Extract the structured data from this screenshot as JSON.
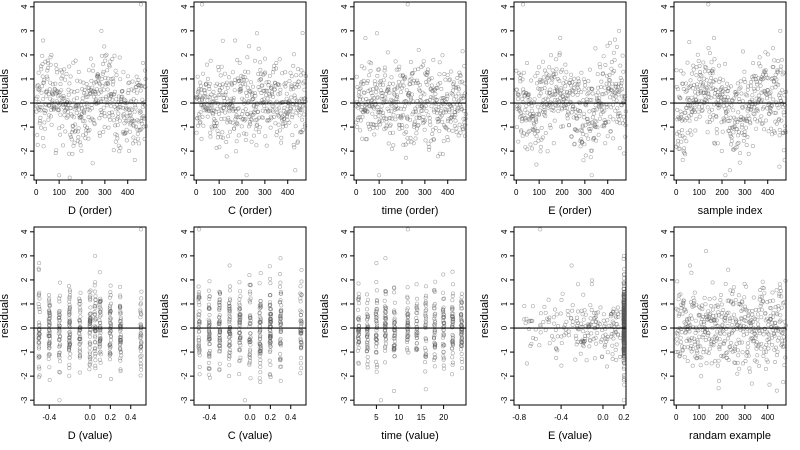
{
  "figure": {
    "layout": {
      "rows": 2,
      "cols": 5
    },
    "colors": {
      "points": "#555555",
      "zero_line": "#000000",
      "frame": "#000000"
    }
  },
  "chart_data": [
    {
      "id": "d-order",
      "type": "scatter",
      "xlabel": "D (order)",
      "ylabel": "residuals",
      "xlim": [
        -10,
        480
      ],
      "ylim": [
        -3.2,
        4.2
      ],
      "xticks": [
        0,
        100,
        200,
        300,
        400
      ],
      "yticks": [
        -3,
        -2,
        -1,
        0,
        1,
        2,
        3,
        4
      ],
      "grid": false,
      "n_points": 480,
      "x_pattern": "index",
      "y_pattern": "wave",
      "reference_line_y": 0,
      "extremes": [
        [
          458,
          4.1
        ],
        [
          100,
          -3.0
        ],
        [
          285,
          3.0
        ],
        [
          30,
          2.6
        ]
      ]
    },
    {
      "id": "c-order",
      "type": "scatter",
      "xlabel": "C (order)",
      "ylabel": "residuals",
      "xlim": [
        -10,
        480
      ],
      "ylim": [
        -3.2,
        4.2
      ],
      "xticks": [
        0,
        100,
        200,
        300,
        400
      ],
      "yticks": [
        -3,
        -2,
        -1,
        0,
        1,
        2,
        3,
        4
      ],
      "grid": false,
      "n_points": 480,
      "x_pattern": "index",
      "y_pattern": "noise",
      "reference_line_y": 0,
      "extremes": [
        [
          25,
          4.1
        ],
        [
          220,
          -3.0
        ],
        [
          265,
          2.9
        ],
        [
          170,
          2.6
        ]
      ]
    },
    {
      "id": "time-order",
      "type": "scatter",
      "xlabel": "time (order)",
      "ylabel": "residuals",
      "xlim": [
        -10,
        480
      ],
      "ylim": [
        -3.2,
        4.2
      ],
      "xticks": [
        0,
        100,
        200,
        300,
        400
      ],
      "yticks": [
        -3,
        -2,
        -1,
        0,
        1,
        2,
        3,
        4
      ],
      "grid": false,
      "n_points": 480,
      "x_pattern": "index",
      "y_pattern": "noise",
      "reference_line_y": 0,
      "extremes": [
        [
          225,
          4.1
        ],
        [
          100,
          -3.0
        ],
        [
          90,
          2.9
        ],
        [
          40,
          2.7
        ]
      ]
    },
    {
      "id": "e-order",
      "type": "scatter",
      "xlabel": "E (order)",
      "ylabel": "residuals",
      "xlim": [
        -10,
        480
      ],
      "ylim": [
        -3.2,
        4.2
      ],
      "xticks": [
        0,
        100,
        200,
        300,
        400
      ],
      "yticks": [
        -3,
        -2,
        -1,
        0,
        1,
        2,
        3,
        4
      ],
      "grid": false,
      "n_points": 480,
      "x_pattern": "index",
      "y_pattern": "wave",
      "reference_line_y": 0,
      "extremes": [
        [
          30,
          4.1
        ],
        [
          330,
          -3.0
        ],
        [
          450,
          3.0
        ],
        [
          410,
          2.5
        ]
      ]
    },
    {
      "id": "sample-index",
      "type": "scatter",
      "xlabel": "sample index",
      "ylabel": "residuals",
      "xlim": [
        -10,
        480
      ],
      "ylim": [
        -3.2,
        4.2
      ],
      "xticks": [
        0,
        100,
        200,
        300,
        400
      ],
      "yticks": [
        -3,
        -2,
        -1,
        0,
        1,
        2,
        3,
        4
      ],
      "grid": false,
      "n_points": 480,
      "x_pattern": "index",
      "y_pattern": "wave",
      "reference_line_y": 0,
      "extremes": [
        [
          140,
          4.1
        ],
        [
          215,
          -3.0
        ],
        [
          455,
          3.0
        ],
        [
          165,
          2.7
        ]
      ]
    },
    {
      "id": "d-value",
      "type": "scatter",
      "xlabel": "D (value)",
      "ylabel": "residuals",
      "xlim": [
        -0.55,
        0.55
      ],
      "ylim": [
        -3.2,
        4.2
      ],
      "xticks": [
        -0.4,
        0,
        0.2,
        0.4
      ],
      "yticks": [
        -3,
        -2,
        -1,
        0,
        1,
        2,
        3,
        4
      ],
      "grid": false,
      "n_points": 480,
      "x_pattern": "clusters",
      "x_levels": [
        -0.5,
        -0.4,
        -0.3,
        -0.2,
        -0.1,
        0,
        0.05,
        0.1,
        0.2,
        0.3,
        0.5
      ],
      "reference_line_y": 0,
      "extremes": [
        [
          0.5,
          4.1
        ],
        [
          -0.3,
          -3.0
        ],
        [
          0.05,
          3.0
        ],
        [
          -0.5,
          2.7
        ]
      ]
    },
    {
      "id": "c-value",
      "type": "scatter",
      "xlabel": "C (value)",
      "ylabel": "residuals",
      "xlim": [
        -0.55,
        0.55
      ],
      "ylim": [
        -3.2,
        4.2
      ],
      "xticks": [
        -0.4,
        0,
        0.2,
        0.4
      ],
      "yticks": [
        -3,
        -2,
        -1,
        0,
        1,
        2,
        3,
        4
      ],
      "grid": false,
      "n_points": 480,
      "x_pattern": "clusters",
      "x_levels": [
        -0.5,
        -0.4,
        -0.3,
        -0.2,
        -0.1,
        0,
        0.1,
        0.2,
        0.3,
        0.5
      ],
      "reference_line_y": 0,
      "extremes": [
        [
          -0.5,
          4.1
        ],
        [
          -0.05,
          -3.0
        ],
        [
          0.3,
          2.9
        ],
        [
          -0.2,
          2.6
        ]
      ]
    },
    {
      "id": "time-value",
      "type": "scatter",
      "xlabel": "time (value)",
      "ylabel": "residuals",
      "xlim": [
        0,
        25
      ],
      "ylim": [
        -3.2,
        4.2
      ],
      "xticks": [
        5,
        10,
        15,
        20
      ],
      "yticks": [
        -3,
        -2,
        -1,
        0,
        1,
        2,
        3,
        4
      ],
      "grid": false,
      "n_points": 480,
      "x_pattern": "clusters",
      "x_levels": [
        1,
        3,
        5,
        7,
        9,
        12,
        14,
        16,
        18,
        20,
        22,
        24
      ],
      "reference_line_y": 0,
      "extremes": [
        [
          12,
          4.1
        ],
        [
          6,
          -3.0
        ],
        [
          7,
          2.9
        ],
        [
          5,
          2.7
        ]
      ]
    },
    {
      "id": "e-value",
      "type": "scatter",
      "xlabel": "E (value)",
      "ylabel": "residuals",
      "xlim": [
        -0.85,
        0.22
      ],
      "ylim": [
        -3.2,
        4.2
      ],
      "xticks": [
        -0.8,
        -0.4,
        0.0,
        0.2
      ],
      "yticks": [
        -3,
        -2,
        -1,
        0,
        1,
        2,
        3,
        4
      ],
      "grid": false,
      "n_points": 480,
      "x_pattern": "skewed_right",
      "x_levels": [
        0.2
      ],
      "reference_line_y": 0,
      "extremes": [
        [
          -0.6,
          4.1
        ],
        [
          0.2,
          -3.0
        ],
        [
          0.2,
          3.0
        ],
        [
          -0.3,
          2.6
        ]
      ]
    },
    {
      "id": "random-example",
      "type": "scatter",
      "xlabel": "randam example",
      "ylabel": "residuals",
      "xlim": [
        -10,
        480
      ],
      "ylim": [
        -3.2,
        4.2
      ],
      "xticks": [
        0,
        100,
        200,
        300,
        400
      ],
      "yticks": [
        -3,
        -2,
        -1,
        0,
        1,
        2,
        3,
        4
      ],
      "grid": false,
      "n_points": 480,
      "x_pattern": "index",
      "y_pattern": "noise",
      "reference_line_y": 0,
      "extremes": [
        [
          130,
          3.2
        ],
        [
          185,
          -2.5
        ],
        [
          440,
          -2.6
        ],
        [
          60,
          2.6
        ]
      ]
    }
  ]
}
